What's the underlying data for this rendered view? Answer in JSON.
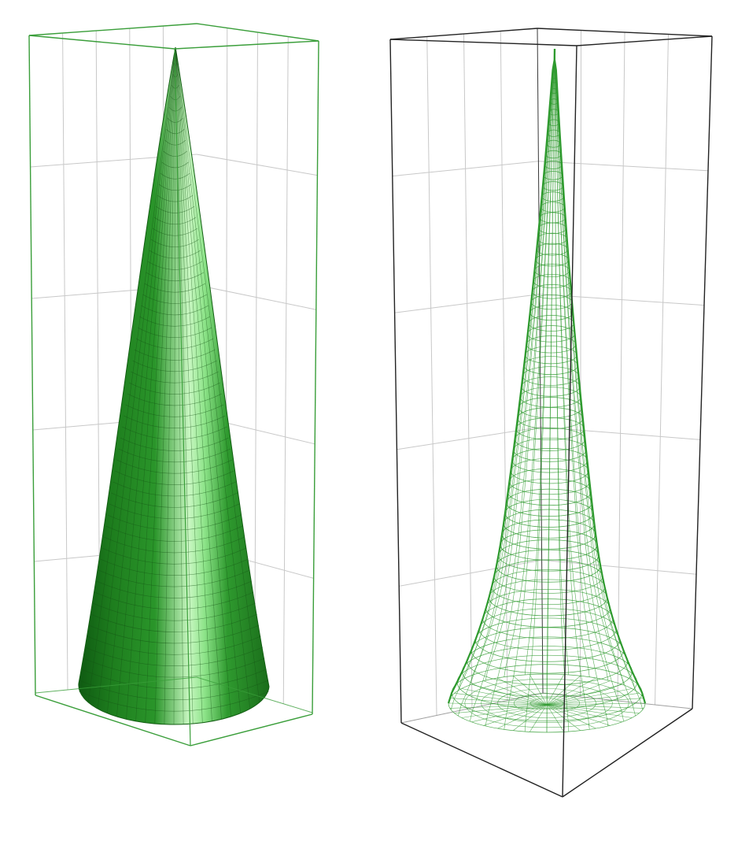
{
  "figure": {
    "panels": [
      {
        "id": "left",
        "name": "shaded-cone-render",
        "render_style": "shaded-mesh",
        "box_color": "#3a9e3a",
        "surface_color": "#228b22",
        "highlight_color": "#b8f5b0",
        "mesh_color": "#145214",
        "grid_color": "#c8c8c8"
      },
      {
        "id": "right",
        "name": "wireframe-cone-render",
        "render_style": "wireframe",
        "box_color": "#222222",
        "surface_color": "#2e9a2e",
        "mesh_color": "#2e9a2e",
        "grid_color": "#c8c8c8"
      }
    ]
  }
}
